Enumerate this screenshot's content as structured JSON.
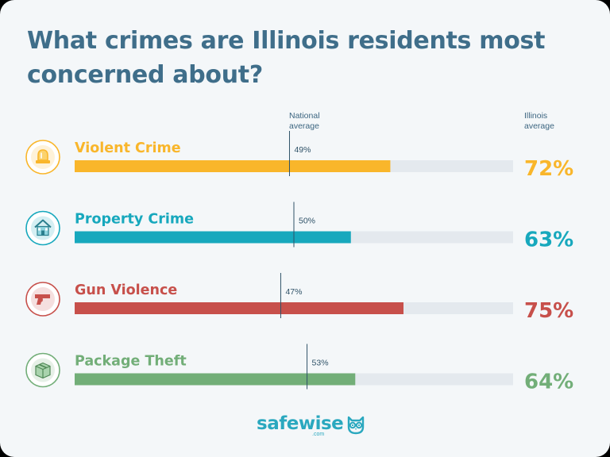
{
  "title": "What crimes are Illinois residents most concerned about?",
  "headers": {
    "national": [
      "National",
      "average"
    ],
    "illinois": [
      "Illinois",
      "average"
    ]
  },
  "chart_data": {
    "type": "bar",
    "title": "What crimes are Illinois residents most concerned about?",
    "categories": [
      "Violent Crime",
      "Property Crime",
      "Gun Violence",
      "Package Theft"
    ],
    "series": [
      {
        "name": "Illinois average",
        "values": [
          72,
          63,
          75,
          64
        ]
      },
      {
        "name": "National average",
        "values": [
          49,
          50,
          47,
          53
        ]
      }
    ],
    "value_labels": {
      "illinois": [
        "72%",
        "63%",
        "75%",
        "64%"
      ],
      "national": [
        "49%",
        "50%",
        "47%",
        "53%"
      ]
    },
    "xlim": [
      0,
      100
    ],
    "colors": [
      "#f9b62b",
      "#17a8bd",
      "#c7504b",
      "#72ae78"
    ],
    "icons": [
      "siren-icon",
      "house-icon",
      "gun-icon",
      "package-icon"
    ]
  },
  "brand": {
    "name": "safewise",
    "domain": ".com",
    "icon": "owl-icon"
  }
}
